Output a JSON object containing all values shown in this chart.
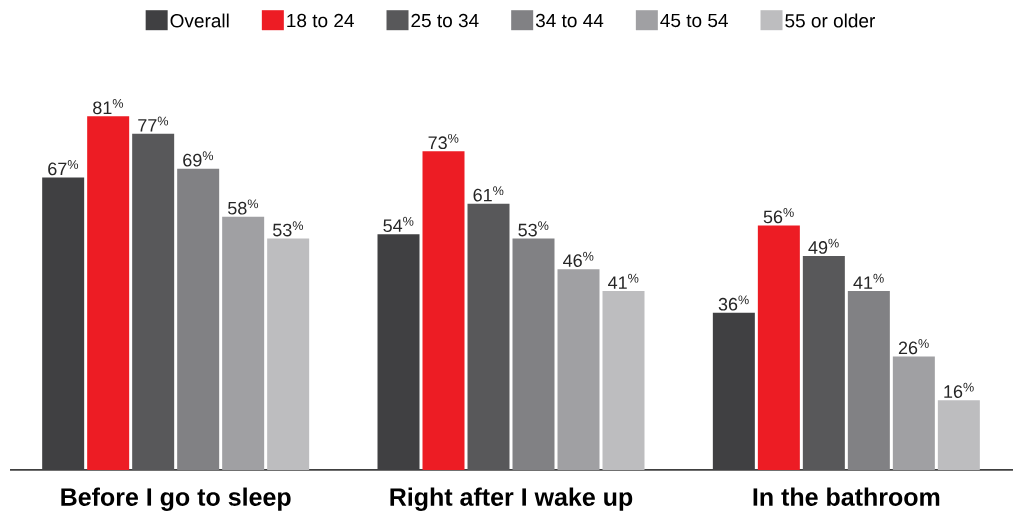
{
  "chart_data": {
    "type": "bar",
    "categories": [
      "Before I go to sleep",
      "Right after I wake up",
      "In the bathroom"
    ],
    "legend": "top",
    "tick_labels": "x",
    "series": [
      {
        "name": "Overall",
        "color": "#404042",
        "values": [
          67,
          54,
          36
        ],
        "value_labels": [
          "67$^{%}$",
          "54$^{%}$",
          "36$^{%}$"
        ]
      },
      {
        "name": "18 to 24",
        "color": "#ed1c24",
        "values": [
          81,
          73,
          56
        ],
        "value_labels": [
          "81$^{%}$",
          "73$^{%}$",
          "56$^{%}$"
        ]
      },
      {
        "name": "25 to 34",
        "color": "#58585a",
        "values": [
          77,
          61,
          49
        ],
        "value_labels": [
          "77$^{%}$",
          "61$^{%}$",
          "49$^{%}$"
        ]
      },
      {
        "name": "34 to 44",
        "color": "#818184",
        "values": [
          69,
          53,
          41
        ],
        "value_labels": [
          "69$^{%}$",
          "53$^{%}$",
          "41$^{%}$"
        ]
      },
      {
        "name": "45 to 54",
        "color": "#a0a0a3",
        "values": [
          58,
          46,
          26
        ],
        "value_labels": [
          "58$^{%}$",
          "46$^{%}$",
          "26$^{%}$"
        ]
      },
      {
        "name": "55 or older",
        "color": "#bdbdbf",
        "values": [
          53,
          41,
          16
        ],
        "value_labels": [
          "53$^{%}$",
          "41$^{%}$",
          "16$^{%}$"
        ]
      }
    ]
  }
}
